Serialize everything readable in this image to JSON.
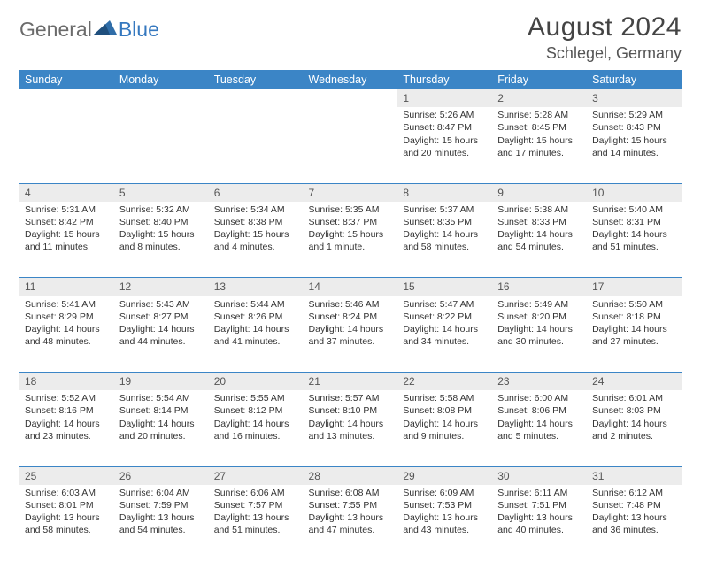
{
  "logo": {
    "text1": "General",
    "text2": "Blue"
  },
  "title": "August 2024",
  "location": "Schlegel, Germany",
  "colors": {
    "header_bg": "#3b85c6",
    "header_text": "#ffffff",
    "daynum_bg": "#ececec",
    "row_divider": "#3b85c6",
    "logo_gray": "#6b6b6b",
    "logo_blue": "#3578bf"
  },
  "weekdays": [
    "Sunday",
    "Monday",
    "Tuesday",
    "Wednesday",
    "Thursday",
    "Friday",
    "Saturday"
  ],
  "weeks": [
    [
      null,
      null,
      null,
      null,
      {
        "n": "1",
        "sr": "5:26 AM",
        "ss": "8:47 PM",
        "dl": "15 hours and 20 minutes."
      },
      {
        "n": "2",
        "sr": "5:28 AM",
        "ss": "8:45 PM",
        "dl": "15 hours and 17 minutes."
      },
      {
        "n": "3",
        "sr": "5:29 AM",
        "ss": "8:43 PM",
        "dl": "15 hours and 14 minutes."
      }
    ],
    [
      {
        "n": "4",
        "sr": "5:31 AM",
        "ss": "8:42 PM",
        "dl": "15 hours and 11 minutes."
      },
      {
        "n": "5",
        "sr": "5:32 AM",
        "ss": "8:40 PM",
        "dl": "15 hours and 8 minutes."
      },
      {
        "n": "6",
        "sr": "5:34 AM",
        "ss": "8:38 PM",
        "dl": "15 hours and 4 minutes."
      },
      {
        "n": "7",
        "sr": "5:35 AM",
        "ss": "8:37 PM",
        "dl": "15 hours and 1 minute."
      },
      {
        "n": "8",
        "sr": "5:37 AM",
        "ss": "8:35 PM",
        "dl": "14 hours and 58 minutes."
      },
      {
        "n": "9",
        "sr": "5:38 AM",
        "ss": "8:33 PM",
        "dl": "14 hours and 54 minutes."
      },
      {
        "n": "10",
        "sr": "5:40 AM",
        "ss": "8:31 PM",
        "dl": "14 hours and 51 minutes."
      }
    ],
    [
      {
        "n": "11",
        "sr": "5:41 AM",
        "ss": "8:29 PM",
        "dl": "14 hours and 48 minutes."
      },
      {
        "n": "12",
        "sr": "5:43 AM",
        "ss": "8:27 PM",
        "dl": "14 hours and 44 minutes."
      },
      {
        "n": "13",
        "sr": "5:44 AM",
        "ss": "8:26 PM",
        "dl": "14 hours and 41 minutes."
      },
      {
        "n": "14",
        "sr": "5:46 AM",
        "ss": "8:24 PM",
        "dl": "14 hours and 37 minutes."
      },
      {
        "n": "15",
        "sr": "5:47 AM",
        "ss": "8:22 PM",
        "dl": "14 hours and 34 minutes."
      },
      {
        "n": "16",
        "sr": "5:49 AM",
        "ss": "8:20 PM",
        "dl": "14 hours and 30 minutes."
      },
      {
        "n": "17",
        "sr": "5:50 AM",
        "ss": "8:18 PM",
        "dl": "14 hours and 27 minutes."
      }
    ],
    [
      {
        "n": "18",
        "sr": "5:52 AM",
        "ss": "8:16 PM",
        "dl": "14 hours and 23 minutes."
      },
      {
        "n": "19",
        "sr": "5:54 AM",
        "ss": "8:14 PM",
        "dl": "14 hours and 20 minutes."
      },
      {
        "n": "20",
        "sr": "5:55 AM",
        "ss": "8:12 PM",
        "dl": "14 hours and 16 minutes."
      },
      {
        "n": "21",
        "sr": "5:57 AM",
        "ss": "8:10 PM",
        "dl": "14 hours and 13 minutes."
      },
      {
        "n": "22",
        "sr": "5:58 AM",
        "ss": "8:08 PM",
        "dl": "14 hours and 9 minutes."
      },
      {
        "n": "23",
        "sr": "6:00 AM",
        "ss": "8:06 PM",
        "dl": "14 hours and 5 minutes."
      },
      {
        "n": "24",
        "sr": "6:01 AM",
        "ss": "8:03 PM",
        "dl": "14 hours and 2 minutes."
      }
    ],
    [
      {
        "n": "25",
        "sr": "6:03 AM",
        "ss": "8:01 PM",
        "dl": "13 hours and 58 minutes."
      },
      {
        "n": "26",
        "sr": "6:04 AM",
        "ss": "7:59 PM",
        "dl": "13 hours and 54 minutes."
      },
      {
        "n": "27",
        "sr": "6:06 AM",
        "ss": "7:57 PM",
        "dl": "13 hours and 51 minutes."
      },
      {
        "n": "28",
        "sr": "6:08 AM",
        "ss": "7:55 PM",
        "dl": "13 hours and 47 minutes."
      },
      {
        "n": "29",
        "sr": "6:09 AM",
        "ss": "7:53 PM",
        "dl": "13 hours and 43 minutes."
      },
      {
        "n": "30",
        "sr": "6:11 AM",
        "ss": "7:51 PM",
        "dl": "13 hours and 40 minutes."
      },
      {
        "n": "31",
        "sr": "6:12 AM",
        "ss": "7:48 PM",
        "dl": "13 hours and 36 minutes."
      }
    ]
  ],
  "labels": {
    "sunrise": "Sunrise:",
    "sunset": "Sunset:",
    "daylight": "Daylight:"
  }
}
